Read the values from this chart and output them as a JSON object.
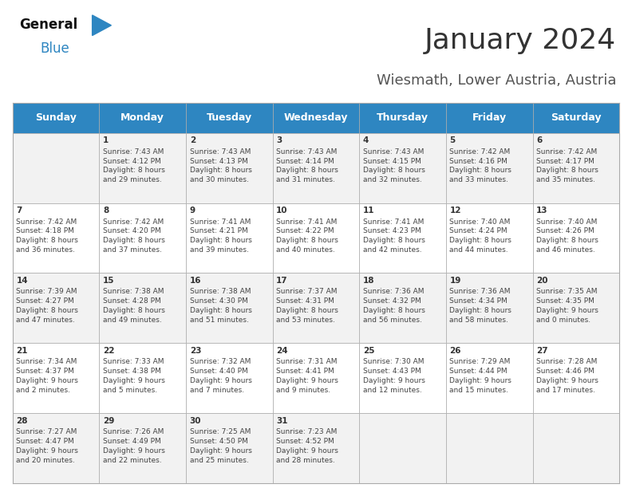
{
  "title": "January 2024",
  "subtitle": "Wiesmath, Lower Austria, Austria",
  "header_bg": "#2E86C1",
  "header_text": "#FFFFFF",
  "odd_row_bg": "#F2F2F2",
  "even_row_bg": "#FFFFFF",
  "border_color": "#AAAAAA",
  "day_headers": [
    "Sunday",
    "Monday",
    "Tuesday",
    "Wednesday",
    "Thursday",
    "Friday",
    "Saturday"
  ],
  "calendar_data": [
    [
      "",
      "1\nSunrise: 7:43 AM\nSunset: 4:12 PM\nDaylight: 8 hours\nand 29 minutes.",
      "2\nSunrise: 7:43 AM\nSunset: 4:13 PM\nDaylight: 8 hours\nand 30 minutes.",
      "3\nSunrise: 7:43 AM\nSunset: 4:14 PM\nDaylight: 8 hours\nand 31 minutes.",
      "4\nSunrise: 7:43 AM\nSunset: 4:15 PM\nDaylight: 8 hours\nand 32 minutes.",
      "5\nSunrise: 7:42 AM\nSunset: 4:16 PM\nDaylight: 8 hours\nand 33 minutes.",
      "6\nSunrise: 7:42 AM\nSunset: 4:17 PM\nDaylight: 8 hours\nand 35 minutes."
    ],
    [
      "7\nSunrise: 7:42 AM\nSunset: 4:18 PM\nDaylight: 8 hours\nand 36 minutes.",
      "8\nSunrise: 7:42 AM\nSunset: 4:20 PM\nDaylight: 8 hours\nand 37 minutes.",
      "9\nSunrise: 7:41 AM\nSunset: 4:21 PM\nDaylight: 8 hours\nand 39 minutes.",
      "10\nSunrise: 7:41 AM\nSunset: 4:22 PM\nDaylight: 8 hours\nand 40 minutes.",
      "11\nSunrise: 7:41 AM\nSunset: 4:23 PM\nDaylight: 8 hours\nand 42 minutes.",
      "12\nSunrise: 7:40 AM\nSunset: 4:24 PM\nDaylight: 8 hours\nand 44 minutes.",
      "13\nSunrise: 7:40 AM\nSunset: 4:26 PM\nDaylight: 8 hours\nand 46 minutes."
    ],
    [
      "14\nSunrise: 7:39 AM\nSunset: 4:27 PM\nDaylight: 8 hours\nand 47 minutes.",
      "15\nSunrise: 7:38 AM\nSunset: 4:28 PM\nDaylight: 8 hours\nand 49 minutes.",
      "16\nSunrise: 7:38 AM\nSunset: 4:30 PM\nDaylight: 8 hours\nand 51 minutes.",
      "17\nSunrise: 7:37 AM\nSunset: 4:31 PM\nDaylight: 8 hours\nand 53 minutes.",
      "18\nSunrise: 7:36 AM\nSunset: 4:32 PM\nDaylight: 8 hours\nand 56 minutes.",
      "19\nSunrise: 7:36 AM\nSunset: 4:34 PM\nDaylight: 8 hours\nand 58 minutes.",
      "20\nSunrise: 7:35 AM\nSunset: 4:35 PM\nDaylight: 9 hours\nand 0 minutes."
    ],
    [
      "21\nSunrise: 7:34 AM\nSunset: 4:37 PM\nDaylight: 9 hours\nand 2 minutes.",
      "22\nSunrise: 7:33 AM\nSunset: 4:38 PM\nDaylight: 9 hours\nand 5 minutes.",
      "23\nSunrise: 7:32 AM\nSunset: 4:40 PM\nDaylight: 9 hours\nand 7 minutes.",
      "24\nSunrise: 7:31 AM\nSunset: 4:41 PM\nDaylight: 9 hours\nand 9 minutes.",
      "25\nSunrise: 7:30 AM\nSunset: 4:43 PM\nDaylight: 9 hours\nand 12 minutes.",
      "26\nSunrise: 7:29 AM\nSunset: 4:44 PM\nDaylight: 9 hours\nand 15 minutes.",
      "27\nSunrise: 7:28 AM\nSunset: 4:46 PM\nDaylight: 9 hours\nand 17 minutes."
    ],
    [
      "28\nSunrise: 7:27 AM\nSunset: 4:47 PM\nDaylight: 9 hours\nand 20 minutes.",
      "29\nSunrise: 7:26 AM\nSunset: 4:49 PM\nDaylight: 9 hours\nand 22 minutes.",
      "30\nSunrise: 7:25 AM\nSunset: 4:50 PM\nDaylight: 9 hours\nand 25 minutes.",
      "31\nSunrise: 7:23 AM\nSunset: 4:52 PM\nDaylight: 9 hours\nand 28 minutes.",
      "",
      "",
      ""
    ]
  ],
  "fig_width": 7.92,
  "fig_height": 6.12,
  "title_fontsize": 26,
  "subtitle_fontsize": 13,
  "header_fontsize": 9,
  "cell_fontsize": 6.5,
  "logo_general_color": "#111111",
  "logo_blue_color": "#2E86C1",
  "logo_triangle_color": "#2E86C1"
}
